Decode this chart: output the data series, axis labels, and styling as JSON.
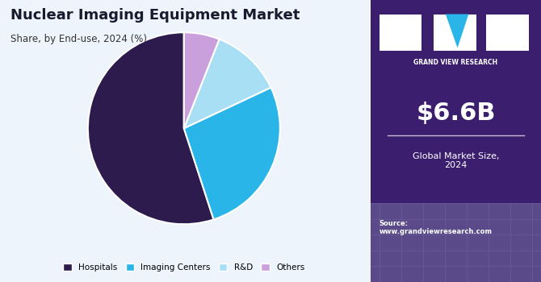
{
  "title": "Nuclear Imaging Equipment Market",
  "subtitle": "Share, by End-use, 2024 (%)",
  "slices": [
    55,
    27,
    12,
    6
  ],
  "labels": [
    "Hospitals",
    "Imaging Centers",
    "R&D",
    "Others"
  ],
  "colors": [
    "#2d1b4e",
    "#29b5e8",
    "#a8dff5",
    "#c9a0dc"
  ],
  "startangle": 90,
  "bg_color": "#eef4fb",
  "right_panel_color": "#3b1f6e",
  "right_panel_bottom_color": "#5a4a8a",
  "market_size": "$6.6B",
  "market_label": "Global Market Size,\n2024",
  "source_text": "Source:\nwww.grandviewresearch.com",
  "gvr_label": "GRAND VIEW RESEARCH",
  "title_color": "#1a1a2e",
  "subtitle_color": "#333333"
}
